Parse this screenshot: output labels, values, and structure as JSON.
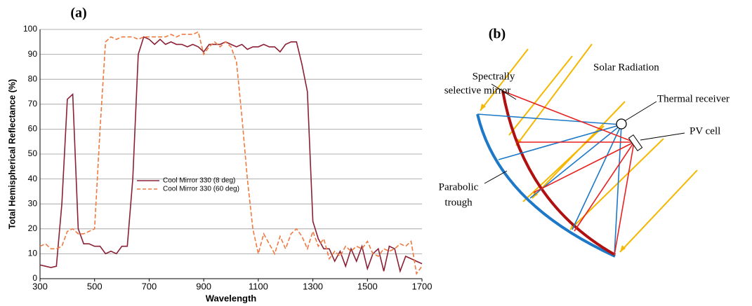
{
  "chart_data": {
    "type": "line",
    "title": "(a)",
    "x_label": "Wavelength",
    "y_label": "Total Hemispherical Reflectance (%)",
    "xlim": [
      300,
      1700
    ],
    "ylim": [
      0,
      100
    ],
    "xticks": [
      300,
      500,
      700,
      900,
      1100,
      1300,
      1500,
      1700
    ],
    "yticks": [
      0,
      10,
      20,
      30,
      40,
      50,
      60,
      70,
      80,
      90,
      100
    ],
    "grid": true,
    "legend": "center",
    "x": [
      300,
      320,
      340,
      360,
      380,
      400,
      420,
      440,
      460,
      480,
      500,
      520,
      540,
      560,
      580,
      600,
      620,
      640,
      660,
      680,
      700,
      720,
      740,
      760,
      780,
      800,
      820,
      840,
      860,
      880,
      900,
      920,
      940,
      960,
      980,
      1000,
      1020,
      1040,
      1060,
      1080,
      1100,
      1120,
      1140,
      1160,
      1180,
      1200,
      1220,
      1240,
      1260,
      1280,
      1300,
      1320,
      1340,
      1360,
      1380,
      1400,
      1420,
      1440,
      1460,
      1480,
      1500,
      1520,
      1540,
      1560,
      1580,
      1600,
      1620,
      1640,
      1660,
      1680,
      1700
    ],
    "series": [
      {
        "name": "Cool Mirror 330 (8 deg)",
        "color": "#8b2035",
        "style": "solid",
        "values": [
          5.5,
          5,
          4.5,
          5,
          30,
          72,
          74,
          20,
          14,
          14,
          13,
          13,
          10,
          11,
          10,
          13,
          13,
          40,
          90,
          97,
          96,
          94,
          96,
          94,
          95,
          94,
          94,
          93,
          94,
          93,
          91,
          94,
          94,
          94,
          95,
          94,
          93,
          94,
          92,
          93,
          93,
          94,
          93,
          93,
          91,
          94,
          95,
          95,
          86,
          75,
          23,
          16,
          12,
          12,
          7,
          11,
          5,
          12,
          7,
          13,
          4,
          10,
          12,
          3,
          13,
          12,
          3,
          9,
          8,
          7,
          6
        ]
      },
      {
        "name": "Cool Mirror 330 (60 deg)",
        "color": "#f07a40",
        "style": "dashed",
        "values": [
          13,
          14,
          12,
          12,
          13,
          19,
          20,
          18,
          18,
          19,
          20,
          60,
          95,
          97,
          96,
          97,
          97,
          97,
          96,
          97,
          97,
          97,
          97,
          97,
          98,
          97,
          98,
          98,
          98,
          99,
          90,
          93,
          95,
          93,
          95,
          93,
          87,
          65,
          40,
          20,
          10,
          18,
          14,
          10,
          17,
          12,
          18,
          20,
          17,
          12,
          19,
          13,
          16,
          8,
          11,
          9,
          13,
          11,
          13,
          12,
          15,
          10,
          9,
          12,
          11,
          12,
          14,
          13,
          15,
          2,
          5
        ]
      }
    ]
  },
  "diagram": {
    "title": "(b)",
    "mirror_label": [
      "Spectrally",
      "selective mirror"
    ],
    "radiation_label": "Solar Radiation",
    "receiver_label": "Thermal receiver",
    "pv_label": "PV cell",
    "trough_label": [
      "Parabolic",
      "trough"
    ]
  }
}
